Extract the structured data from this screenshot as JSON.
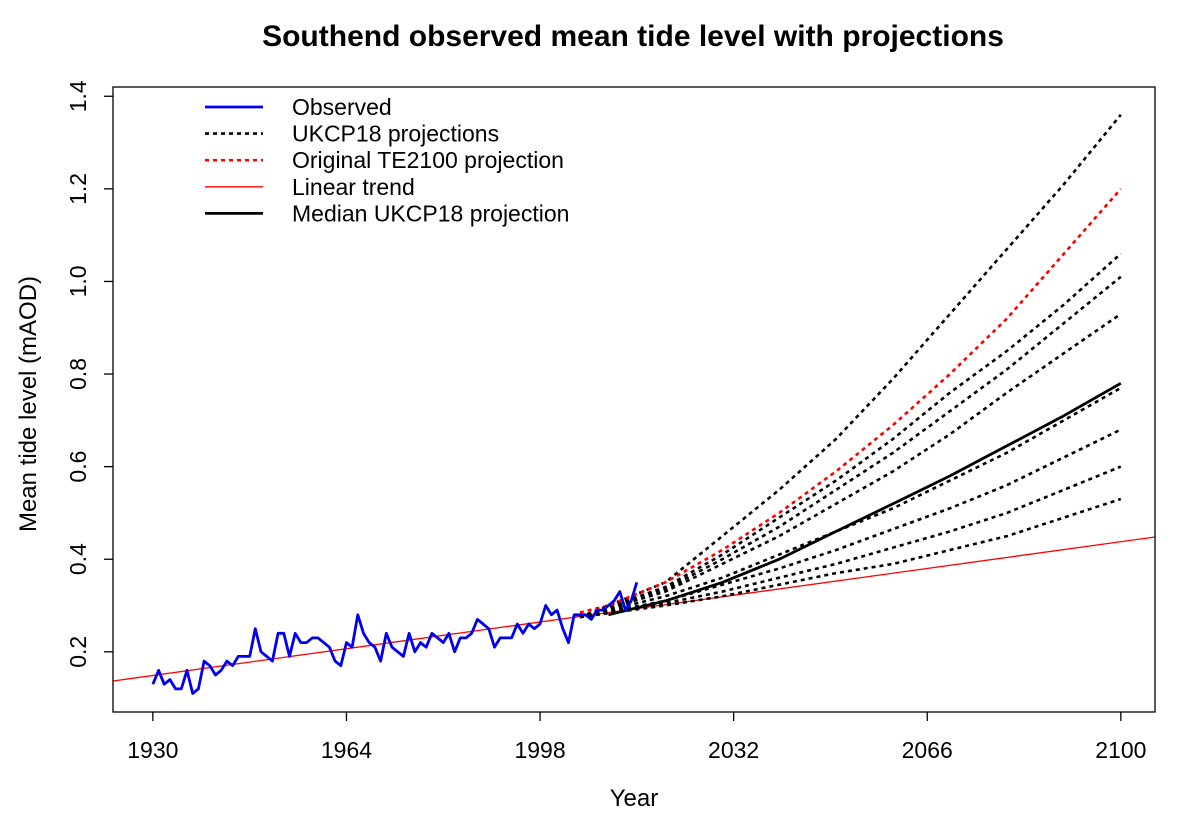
{
  "chart_data": {
    "type": "line",
    "title": "Southend observed mean tide level with projections",
    "xlabel": "Year",
    "ylabel": "Mean tide level (mAOD)",
    "xlim": [
      1923,
      2106
    ],
    "ylim": [
      0.07,
      1.42
    ],
    "x_ticks": [
      1930,
      1964,
      1998,
      2032,
      2066,
      2100
    ],
    "y_ticks": [
      0.2,
      0.4,
      0.6,
      0.8,
      1.0,
      1.2,
      1.4
    ],
    "y_tick_labels": [
      "0.2",
      "0.4",
      "0.6",
      "0.8",
      "1.0",
      "1.2",
      "1.4"
    ],
    "grid": false,
    "legend_position": "top-left",
    "legend": [
      {
        "label": "Observed",
        "color": "#0000ee",
        "style": "solid"
      },
      {
        "label": "UKCP18 projections",
        "color": "#000000",
        "style": "dotted"
      },
      {
        "label": "Original TE2100 projection",
        "color": "#ff0000",
        "style": "dotted"
      },
      {
        "label": "Linear trend",
        "color": "#ff0000",
        "style": "thin"
      },
      {
        "label": "Median UKCP18 projection",
        "color": "#000000",
        "style": "solid"
      }
    ],
    "series": [
      {
        "name": "Observed",
        "color": "#0000ee",
        "style": "solid",
        "x_start": 1930,
        "values": [
          0.13,
          0.16,
          0.13,
          0.14,
          0.12,
          0.12,
          0.16,
          0.11,
          0.12,
          0.18,
          0.17,
          0.15,
          0.16,
          0.18,
          0.17,
          0.19,
          0.19,
          0.19,
          0.25,
          0.2,
          0.19,
          0.18,
          0.24,
          0.24,
          0.19,
          0.24,
          0.22,
          0.22,
          0.23,
          0.23,
          0.22,
          0.21,
          0.18,
          0.17,
          0.22,
          0.21,
          0.28,
          0.24,
          0.22,
          0.21,
          0.18,
          0.24,
          0.21,
          0.2,
          0.19,
          0.24,
          0.2,
          0.22,
          0.21,
          0.24,
          0.23,
          0.22,
          0.24,
          0.2,
          0.23,
          0.23,
          0.24,
          0.27,
          0.26,
          0.25,
          0.21,
          0.23,
          0.23,
          0.23,
          0.26,
          0.24,
          0.26,
          0.25,
          0.26,
          0.3,
          0.28,
          0.29,
          0.25,
          0.22,
          0.28,
          0.28,
          0.28,
          0.27,
          0.29,
          0.29,
          0.3,
          0.31,
          0.33,
          0.29,
          0.31,
          0.35
        ]
      },
      {
        "name": "Linear trend",
        "color": "#ff0000",
        "style": "thin",
        "x": [
          1923,
          2106
        ],
        "y": [
          0.137,
          0.448
        ]
      },
      {
        "name": "Original TE2100 projection",
        "color": "#ff0000",
        "style": "dotted",
        "x": [
          2005,
          2010,
          2020,
          2030,
          2040,
          2050,
          2060,
          2070,
          2080,
          2090,
          2100
        ],
        "y": [
          0.285,
          0.3,
          0.35,
          0.42,
          0.5,
          0.59,
          0.69,
          0.8,
          0.92,
          1.06,
          1.2
        ]
      },
      {
        "name": "Median UKCP18 projection",
        "color": "#000000",
        "style": "solid",
        "x": [
          2010,
          2020,
          2030,
          2040,
          2050,
          2060,
          2070,
          2080,
          2090,
          2100
        ],
        "y": [
          0.28,
          0.31,
          0.35,
          0.4,
          0.46,
          0.52,
          0.58,
          0.645,
          0.71,
          0.78
        ]
      },
      {
        "name": "UKCP18 projections",
        "color": "#000000",
        "style": "dotted",
        "lines": [
          {
            "x": [
              2005,
              2020,
              2030,
              2040,
              2050,
              2060,
              2070,
              2080,
              2090,
              2100
            ],
            "y": [
              0.275,
              0.35,
              0.45,
              0.55,
              0.66,
              0.79,
              0.93,
              1.07,
              1.21,
              1.36
            ]
          },
          {
            "x": [
              2005,
              2020,
              2030,
              2040,
              2050,
              2060,
              2070,
              2080,
              2090,
              2100
            ],
            "y": [
              0.275,
              0.34,
              0.41,
              0.49,
              0.57,
              0.66,
              0.76,
              0.85,
              0.95,
              1.06
            ]
          },
          {
            "x": [
              2005,
              2020,
              2030,
              2040,
              2050,
              2060,
              2070,
              2080,
              2090,
              2100
            ],
            "y": [
              0.275,
              0.335,
              0.4,
              0.47,
              0.55,
              0.63,
              0.72,
              0.81,
              0.91,
              1.01
            ]
          },
          {
            "x": [
              2005,
              2020,
              2030,
              2040,
              2050,
              2060,
              2070,
              2080,
              2090,
              2100
            ],
            "y": [
              0.275,
              0.33,
              0.39,
              0.45,
              0.52,
              0.59,
              0.67,
              0.76,
              0.845,
              0.93
            ]
          },
          {
            "x": [
              2005,
              2020,
              2030,
              2040,
              2050,
              2060,
              2070,
              2080,
              2090,
              2100
            ],
            "y": [
              0.275,
              0.32,
              0.36,
              0.41,
              0.46,
              0.51,
              0.57,
              0.63,
              0.7,
              0.77
            ]
          },
          {
            "x": [
              2005,
              2020,
              2030,
              2040,
              2050,
              2060,
              2070,
              2080,
              2090,
              2100
            ],
            "y": [
              0.275,
              0.31,
              0.345,
              0.38,
              0.42,
              0.465,
              0.51,
              0.56,
              0.62,
              0.68
            ]
          },
          {
            "x": [
              2005,
              2020,
              2030,
              2040,
              2050,
              2060,
              2070,
              2080,
              2090,
              2100
            ],
            "y": [
              0.275,
              0.305,
              0.33,
              0.36,
              0.39,
              0.425,
              0.46,
              0.5,
              0.55,
              0.6
            ]
          },
          {
            "x": [
              2005,
              2020,
              2030,
              2040,
              2050,
              2060,
              2070,
              2080,
              2090,
              2100
            ],
            "y": [
              0.275,
              0.3,
              0.32,
              0.345,
              0.37,
              0.39,
              0.42,
              0.45,
              0.49,
              0.53
            ]
          }
        ]
      }
    ]
  }
}
